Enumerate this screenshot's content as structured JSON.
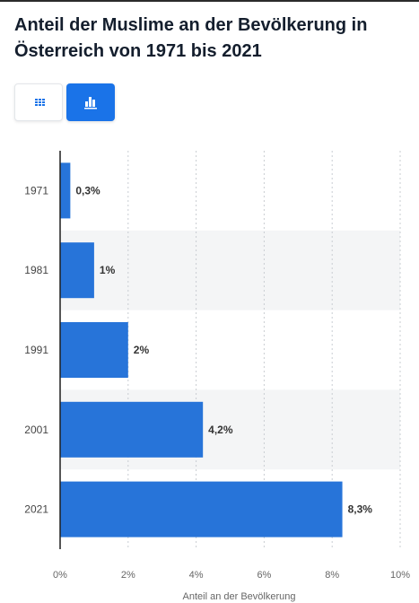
{
  "title": "Anteil der Muslime an der Bevölkerung in Österreich von 1971 bis 2021",
  "toolbar": {
    "table_icon": "grid-icon",
    "chart_icon": "bar-chart-icon",
    "active": "chart"
  },
  "colors": {
    "bar": "#2774d9",
    "title": "#141e2d",
    "active_button": "#1a73e8"
  },
  "chart_data": {
    "type": "bar",
    "orientation": "horizontal",
    "title": "Anteil der Muslime an der Bevölkerung in Österreich von 1971 bis 2021",
    "categories": [
      "1971",
      "1981",
      "1991",
      "2001",
      "2021"
    ],
    "values": [
      0.3,
      1,
      2,
      4.2,
      8.3
    ],
    "value_labels": [
      "0,3%",
      "1%",
      "2%",
      "4,2%",
      "8,3%"
    ],
    "xlabel": "Anteil an der Bevölkerung",
    "ylabel": "",
    "xlim": [
      0,
      10
    ],
    "x_ticks": [
      0,
      2,
      4,
      6,
      8,
      10
    ],
    "x_tick_labels": [
      "0%",
      "2%",
      "4%",
      "6%",
      "8%",
      "10%"
    ],
    "grid": "vertical dotted",
    "legend": "none"
  }
}
